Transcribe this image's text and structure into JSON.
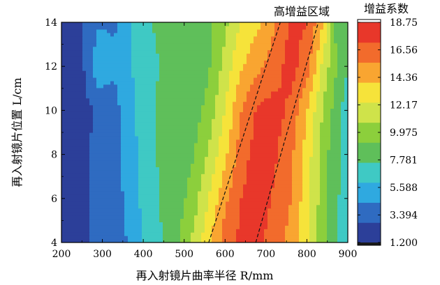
{
  "chart_data": {
    "type": "heatmap",
    "style": "filled-contour",
    "xlabel": "再入射镜片曲率半径 R/mm",
    "ylabel": "再入射镜片位置 L/cm",
    "x_ticks": [
      "200",
      "300",
      "400",
      "500",
      "600",
      "700",
      "800",
      "900"
    ],
    "y_ticks": [
      "4",
      "6",
      "8",
      "10",
      "12",
      "14"
    ],
    "xlim": [
      200,
      900
    ],
    "ylim": [
      4,
      14
    ],
    "colorbar": {
      "title": "增益系数",
      "ticks": [
        "18.75",
        "16.56",
        "14.36",
        "12.17",
        "9.975",
        "7.781",
        "5.588",
        "3.394",
        "1.200"
      ],
      "range": [
        1.2,
        18.75
      ],
      "colors": [
        "#2c3f99",
        "#2f6bc1",
        "#2fa9e0",
        "#3fc9c4",
        "#5fbf5a",
        "#8ccf3c",
        "#cfe34a",
        "#f6e33a",
        "#f9a531",
        "#f26b2c",
        "#e8372a"
      ]
    },
    "annotation": {
      "text": "高增益区域",
      "lines": [
        {
          "from": {
            "x": 560,
            "y": 4
          },
          "to": {
            "x": 735,
            "y": 14
          }
        },
        {
          "from": {
            "x": 675,
            "y": 4
          },
          "to": {
            "x": 828,
            "y": 14
          }
        }
      ]
    },
    "gain_profile": {
      "y": [
        4,
        6,
        8,
        10,
        12,
        14
      ],
      "x": [
        200,
        250,
        290,
        330,
        360,
        400,
        440,
        480,
        520,
        560,
        600,
        640,
        680,
        720,
        760,
        800,
        840,
        870,
        900
      ],
      "z": [
        [
          2.0,
          2.3,
          3.2,
          3.6,
          4.4,
          6.0,
          7.4,
          8.6,
          11.0,
          13.6,
          16.4,
          17.6,
          17.5,
          16.5,
          15.0,
          12.5,
          9.6,
          7.6,
          6.8
        ],
        [
          2.0,
          2.4,
          3.4,
          3.8,
          4.7,
          6.4,
          7.6,
          8.4,
          9.8,
          12.4,
          15.2,
          17.2,
          17.8,
          17.0,
          15.6,
          13.0,
          9.8,
          7.8,
          7.0
        ],
        [
          2.0,
          2.4,
          3.4,
          3.8,
          4.8,
          6.6,
          7.8,
          8.2,
          9.0,
          11.0,
          13.6,
          16.6,
          17.8,
          17.4,
          16.0,
          13.2,
          10.0,
          8.0,
          7.2
        ],
        [
          2.0,
          2.2,
          3.0,
          3.8,
          5.2,
          6.8,
          7.9,
          8.0,
          8.2,
          9.8,
          12.4,
          15.6,
          17.4,
          17.8,
          16.8,
          14.0,
          10.6,
          8.6,
          6.4
        ],
        [
          2.2,
          2.4,
          5.6,
          4.6,
          5.6,
          6.8,
          7.6,
          7.8,
          8.0,
          9.0,
          11.4,
          13.8,
          15.2,
          16.4,
          17.8,
          16.4,
          11.8,
          9.4,
          7.6
        ],
        [
          2.2,
          2.6,
          4.2,
          4.2,
          5.6,
          7.2,
          7.9,
          8.0,
          8.2,
          8.8,
          10.4,
          12.6,
          13.6,
          15.4,
          17.4,
          17.2,
          14.0,
          9.0,
          7.6
        ]
      ]
    }
  }
}
